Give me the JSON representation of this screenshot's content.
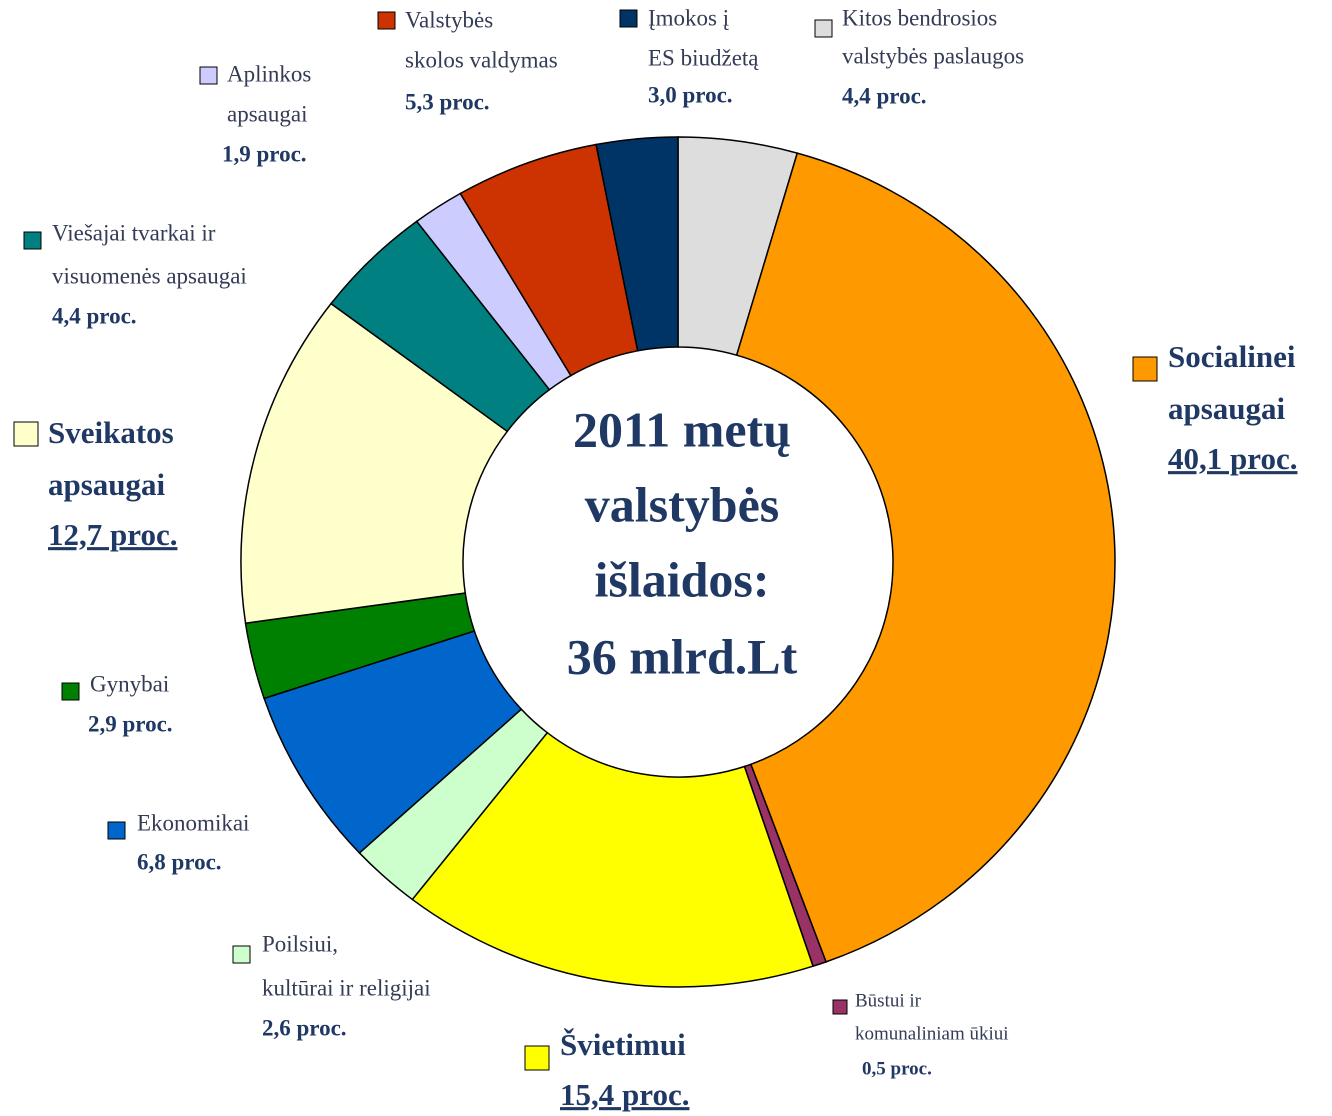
{
  "chart_data": {
    "type": "donut",
    "title": [
      "2011 metų",
      "valstybės",
      "išlaidos:",
      "36 mlrd.Lt"
    ],
    "categories": [
      [
        "Kitos bendrosios",
        "valstybės paslaugos"
      ],
      [
        "Socialinei",
        "apsaugai"
      ],
      [
        "Būstui ir",
        "komunaliniam ūkiui"
      ],
      [
        "Švietimui"
      ],
      [
        "Poilsiui,",
        "kultūrai ir religijai"
      ],
      [
        "Ekonomikai"
      ],
      [
        "Gynybai"
      ],
      [
        "Sveikatos",
        "apsaugai"
      ],
      [
        "Viešajai tvarkai ir",
        "visuomenės apsaugai"
      ],
      [
        "Aplinkos",
        "apsaugai"
      ],
      [
        "Valstybės",
        "skolos valdymas"
      ],
      [
        "Įmokos į",
        "ES biudžetą"
      ]
    ],
    "values": [
      4.4,
      40.1,
      0.5,
      15.4,
      2.6,
      6.8,
      2.9,
      12.7,
      4.4,
      1.9,
      5.3,
      3.0
    ],
    "value_labels": [
      "4,4 proc.",
      "40,1 proc.",
      "0,5 proc.",
      "15,4 proc.",
      "2,6 proc.",
      "6,8 proc.",
      "2,9 proc.",
      "12,7 proc.",
      "4,4 proc.",
      "1,9 proc.",
      "5,3 proc.",
      "3,0 proc."
    ],
    "colors": [
      "#dddddd",
      "#ff9900",
      "#993366",
      "#ffff00",
      "#ccffcc",
      "#0066cc",
      "#008000",
      "#ffffcc",
      "#008080",
      "#ccccff",
      "#cc3300",
      "#003366"
    ]
  }
}
